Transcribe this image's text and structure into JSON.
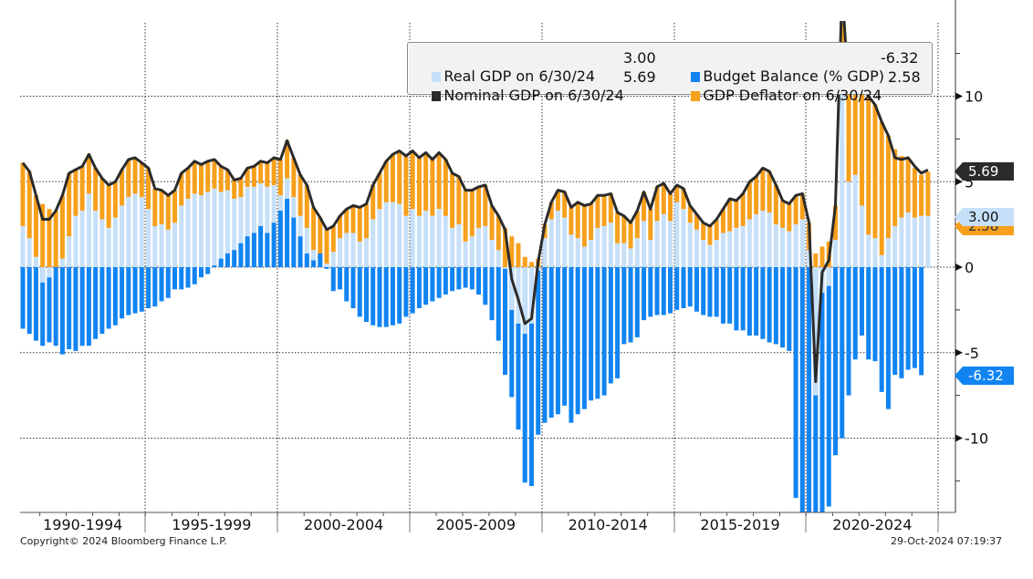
{
  "chart_data": {
    "type": "bar",
    "subtype": "stacked bar with line overlay",
    "title": "",
    "xlabel": "",
    "ylabel": "",
    "ylim": [
      -14.5,
      14.5
    ],
    "yticks": [
      -10,
      -5,
      0,
      5,
      10
    ],
    "grid": true,
    "legend_position": "top-right",
    "x_start_quarter": "1990Q2",
    "x_period_labels": [
      "1990-1994",
      "1995-1999",
      "2000-2004",
      "2005-2009",
      "2010-2014",
      "2015-2019",
      "2020-2024"
    ],
    "series": [
      {
        "name": "Real GDP on 6/30/24",
        "legend_value": "3.00",
        "type": "bar",
        "color": "#c7e0fa",
        "values": [
          2.4,
          1.7,
          0.6,
          -0.9,
          -0.6,
          0.0,
          0.5,
          1.8,
          3.0,
          3.3,
          4.3,
          3.3,
          2.8,
          2.3,
          2.9,
          3.6,
          4.1,
          4.3,
          4.1,
          3.4,
          2.4,
          2.5,
          2.2,
          2.6,
          3.6,
          4.0,
          4.3,
          4.2,
          4.4,
          4.6,
          4.4,
          4.5,
          4.0,
          4.1,
          4.7,
          4.7,
          4.9,
          4.7,
          4.8,
          4.2,
          5.2,
          4.1,
          3.0,
          2.3,
          1.0,
          0.5,
          0.2,
          0.9,
          1.7,
          2.0,
          2.0,
          1.5,
          1.7,
          2.8,
          3.4,
          3.8,
          3.8,
          3.7,
          3.0,
          3.4,
          3.0,
          3.3,
          3.0,
          3.4,
          3.0,
          2.3,
          2.5,
          1.5,
          1.8,
          2.3,
          2.4,
          1.6,
          1.0,
          -0.1,
          -2.5,
          -3.3,
          -3.9,
          -3.3,
          -0.2,
          1.7,
          2.8,
          3.3,
          2.9,
          1.9,
          1.7,
          1.2,
          1.6,
          2.3,
          2.4,
          2.6,
          1.4,
          1.4,
          1.1,
          1.7,
          2.7,
          1.6,
          2.7,
          3.1,
          2.7,
          3.8,
          3.4,
          2.6,
          2.2,
          1.6,
          1.3,
          1.6,
          2.0,
          2.1,
          2.3,
          2.4,
          2.8,
          3.1,
          3.3,
          3.2,
          2.5,
          2.3,
          2.1,
          2.5,
          2.8,
          1.0,
          -7.5,
          -1.5,
          -1.1,
          1.6,
          12.0,
          5.0,
          5.4,
          3.6,
          1.9,
          1.7,
          0.7,
          1.7,
          2.4,
          2.9,
          3.2,
          2.9,
          3.0,
          3.0
        ]
      },
      {
        "name": "GDP Deflator on 6/30/24",
        "legend_value": "2.58",
        "type": "bar",
        "color": "#f7a01c",
        "values": [
          3.7,
          3.9,
          3.6,
          3.7,
          3.4,
          3.3,
          3.7,
          3.7,
          2.7,
          2.6,
          2.3,
          2.5,
          2.4,
          2.5,
          2.1,
          2.1,
          2.2,
          2.1,
          2.0,
          2.4,
          2.2,
          2.0,
          2.0,
          1.9,
          1.9,
          1.8,
          1.9,
          1.8,
          1.8,
          1.7,
          1.5,
          1.2,
          1.1,
          1.1,
          1.1,
          1.2,
          1.3,
          1.4,
          1.6,
          2.1,
          2.2,
          2.3,
          2.4,
          2.5,
          2.5,
          2.4,
          2.0,
          1.5,
          1.3,
          1.4,
          1.6,
          2.0,
          2.0,
          2.0,
          2.1,
          2.4,
          2.8,
          3.1,
          3.5,
          3.4,
          3.4,
          3.4,
          3.3,
          3.3,
          3.3,
          3.2,
          2.8,
          3.0,
          2.7,
          2.4,
          2.4,
          2.0,
          2.0,
          2.3,
          1.8,
          1.4,
          0.6,
          0.3,
          0.5,
          0.8,
          1.0,
          1.2,
          1.5,
          1.6,
          2.1,
          2.4,
          2.1,
          1.9,
          1.8,
          1.7,
          1.8,
          1.6,
          1.5,
          1.6,
          1.7,
          1.8,
          2.0,
          1.8,
          1.6,
          1.0,
          1.2,
          1.0,
          0.9,
          1.0,
          1.1,
          1.2,
          1.4,
          1.9,
          1.6,
          1.9,
          2.2,
          2.2,
          2.5,
          2.4,
          2.3,
          1.6,
          1.6,
          1.7,
          1.5,
          1.6,
          0.8,
          1.2,
          1.5,
          2.0,
          4.2,
          5.3,
          6.2,
          7.0,
          8.1,
          7.8,
          7.8,
          6.0,
          4.5,
          3.6,
          3.2,
          2.9,
          2.4,
          2.58
        ]
      },
      {
        "name": "Budget Balance (% GDP)",
        "legend_value": "-6.32",
        "type": "bar",
        "color": "#1184f2",
        "values": [
          -3.6,
          -3.9,
          -4.3,
          -4.6,
          -4.4,
          -4.6,
          -5.1,
          -4.8,
          -4.9,
          -4.6,
          -4.6,
          -4.2,
          -3.9,
          -3.6,
          -3.4,
          -3.0,
          -2.8,
          -2.7,
          -2.6,
          -2.4,
          -2.3,
          -2.0,
          -1.8,
          -1.3,
          -1.3,
          -1.2,
          -1.0,
          -0.6,
          -0.4,
          0.1,
          0.5,
          0.8,
          1.0,
          1.4,
          1.8,
          2.0,
          2.4,
          2.0,
          2.6,
          3.3,
          4.0,
          2.9,
          1.8,
          0.8,
          0.4,
          0.8,
          -0.1,
          -1.4,
          -1.3,
          -2.0,
          -2.4,
          -2.9,
          -3.2,
          -3.4,
          -3.5,
          -3.5,
          -3.4,
          -3.3,
          -2.9,
          -2.7,
          -2.4,
          -2.2,
          -2.0,
          -1.8,
          -1.6,
          -1.4,
          -1.3,
          -1.2,
          -1.3,
          -1.6,
          -2.2,
          -3.1,
          -4.3,
          -6.3,
          -7.6,
          -9.5,
          -12.6,
          -12.8,
          -9.8,
          -9.1,
          -8.8,
          -8.6,
          -8.1,
          -9.1,
          -8.6,
          -8.3,
          -7.8,
          -7.7,
          -7.5,
          -6.8,
          -6.5,
          -4.5,
          -4.4,
          -4.1,
          -3.1,
          -2.9,
          -2.8,
          -2.8,
          -2.7,
          -2.5,
          -2.4,
          -2.3,
          -2.6,
          -2.8,
          -2.9,
          -2.9,
          -3.3,
          -3.3,
          -3.7,
          -3.7,
          -4.0,
          -4.0,
          -4.2,
          -4.4,
          -4.5,
          -4.7,
          -4.9,
          -13.5,
          -16.0,
          -15.5,
          -15.0,
          -14.5,
          -14.0,
          -11.0,
          -10.0,
          -7.5,
          -5.4,
          -4.0,
          -5.4,
          -5.5,
          -7.3,
          -8.3,
          -6.3,
          -6.5,
          -6.0,
          -5.9,
          -6.32
        ]
      },
      {
        "name": "Nominal GDP on 6/30/24",
        "legend_value": "5.69",
        "type": "line",
        "color": "#2b2b2b",
        "values": [
          6.1,
          5.6,
          4.2,
          2.8,
          2.8,
          3.3,
          4.2,
          5.5,
          5.7,
          5.9,
          6.6,
          5.8,
          5.2,
          4.8,
          5.0,
          5.7,
          6.3,
          6.4,
          6.1,
          5.8,
          4.6,
          4.5,
          4.2,
          4.5,
          5.5,
          5.8,
          6.2,
          6.0,
          6.2,
          6.3,
          5.9,
          5.7,
          5.1,
          5.2,
          5.8,
          5.9,
          6.2,
          6.1,
          6.4,
          6.3,
          7.4,
          6.4,
          5.4,
          4.8,
          3.5,
          2.9,
          2.2,
          2.4,
          3.0,
          3.4,
          3.6,
          3.5,
          3.7,
          4.8,
          5.5,
          6.2,
          6.6,
          6.8,
          6.5,
          6.8,
          6.4,
          6.7,
          6.3,
          6.7,
          6.3,
          5.5,
          5.3,
          4.5,
          4.5,
          4.7,
          4.8,
          3.6,
          3.0,
          2.2,
          -0.7,
          -1.9,
          -3.3,
          -3.0,
          0.3,
          2.5,
          3.8,
          4.5,
          4.4,
          3.5,
          3.8,
          3.6,
          3.7,
          4.2,
          4.2,
          4.3,
          3.2,
          3.0,
          2.6,
          3.3,
          4.4,
          3.4,
          4.7,
          4.9,
          4.3,
          4.8,
          4.6,
          3.6,
          3.1,
          2.6,
          2.4,
          2.8,
          3.4,
          4.0,
          3.9,
          4.3,
          5.0,
          5.3,
          5.8,
          5.6,
          4.8,
          3.9,
          3.7,
          4.2,
          4.3,
          2.6,
          -6.7,
          -0.3,
          0.4,
          3.6,
          16.2,
          10.3,
          11.6,
          10.6,
          10.0,
          9.5,
          8.5,
          7.7,
          6.4,
          6.3,
          6.4,
          5.9,
          5.5,
          5.69
        ]
      }
    ],
    "value_tags": [
      {
        "label": "5.69",
        "series": "Nominal GDP",
        "color": "#2b2b2b"
      },
      {
        "label": "3.00",
        "series": "Real GDP",
        "color": "#c7e0fa"
      },
      {
        "label": "2.58",
        "series": "GDP Deflator",
        "color": "#f7a01c"
      },
      {
        "label": "-6.32",
        "series": "Budget Balance",
        "color": "#1184f2"
      }
    ]
  },
  "legend": {
    "real_gdp": {
      "label": "Real GDP on 6/30/24",
      "value": "3.00"
    },
    "budget": {
      "label": "Budget Balance (% GDP)",
      "value": "-6.32"
    },
    "nominal_gdp": {
      "label": "Nominal GDP on 6/30/24",
      "value": "5.69"
    },
    "deflator": {
      "label": "GDP Deflator on 6/30/24",
      "value": "2.58"
    }
  },
  "footer": {
    "copyright": "Copyright© 2024 Bloomberg Finance L.P.",
    "timestamp": "29-Oct-2024 07:19:37"
  }
}
